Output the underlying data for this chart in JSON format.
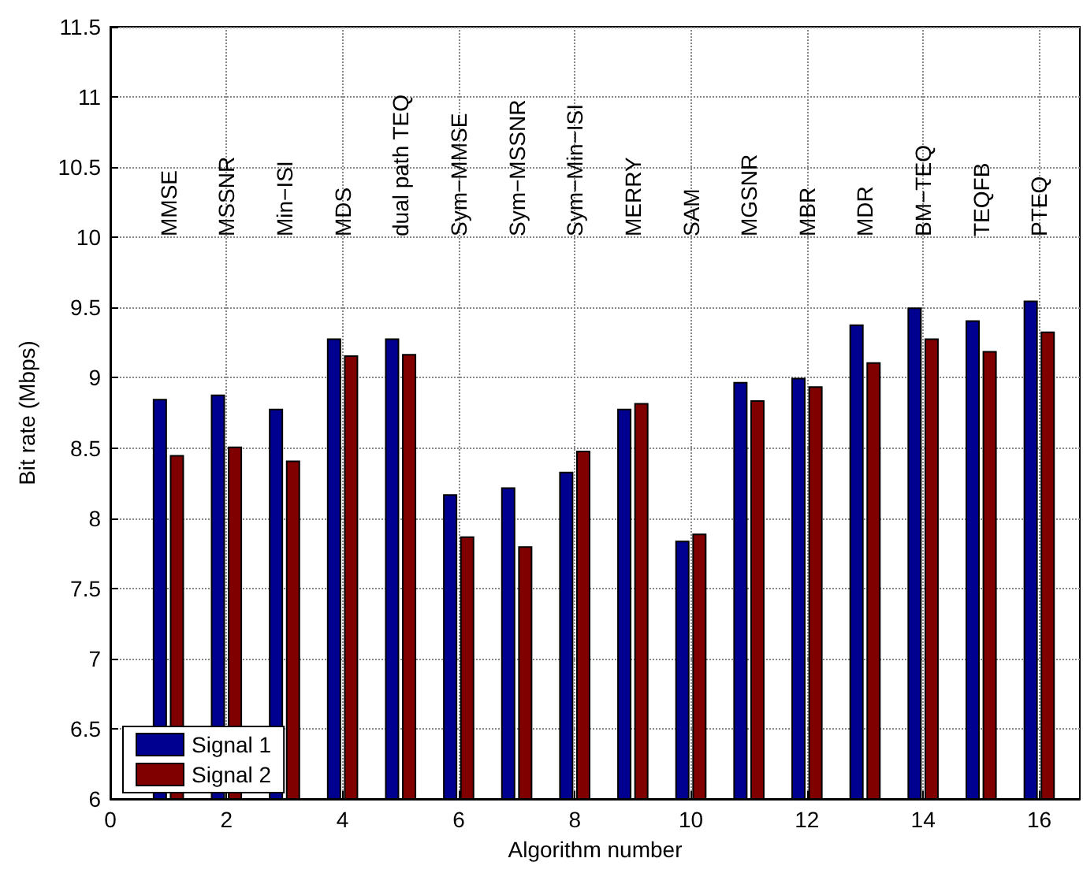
{
  "chart_data": {
    "type": "bar",
    "xlabel": "Algorithm number",
    "ylabel": "Bit rate (Mbps)",
    "x": [
      1,
      2,
      3,
      4,
      5,
      6,
      7,
      8,
      9,
      10,
      11,
      12,
      13,
      14,
      15,
      16
    ],
    "series": [
      {
        "name": "Signal 1",
        "color": "#000090",
        "values": [
          8.85,
          8.88,
          8.78,
          9.28,
          9.28,
          8.17,
          8.22,
          8.33,
          8.78,
          7.84,
          8.97,
          9.0,
          9.38,
          9.5,
          9.41,
          9.55
        ]
      },
      {
        "name": "Signal 2",
        "color": "#800000",
        "values": [
          8.45,
          8.51,
          8.41,
          9.16,
          9.17,
          7.87,
          7.8,
          8.48,
          8.82,
          7.89,
          8.84,
          8.94,
          9.11,
          9.28,
          9.19,
          9.33
        ]
      }
    ],
    "xlim": [
      0,
      16.7
    ],
    "xticks": [
      0,
      2,
      4,
      6,
      8,
      10,
      12,
      14,
      16
    ],
    "ylim": [
      6,
      11.5
    ],
    "yticks": [
      6,
      6.5,
      7,
      7.5,
      8,
      8.5,
      9,
      9.5,
      10,
      10.5,
      11,
      11.5
    ],
    "grid": true,
    "line_style": "dotted",
    "legend": "bottom left",
    "annotations": [
      "MMSE",
      "MSSNR",
      "Min−ISI",
      "MDS",
      "dual path TEQ",
      "Sym−MMSE",
      "Sym−MSSNR",
      "Sym−Min−ISI",
      "MERRY",
      "SAM",
      "MGSNR",
      "MBR",
      "MDR",
      "BM−TEQ",
      "TEQFB",
      "PTEQ"
    ]
  }
}
